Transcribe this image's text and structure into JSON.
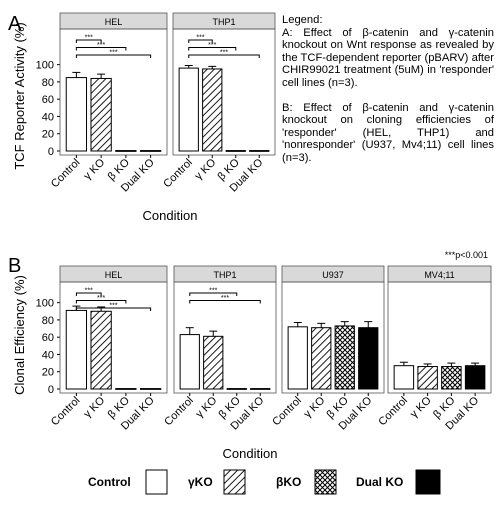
{
  "panel_a_letter": "A",
  "panel_b_letter": "B",
  "legend": {
    "title": "Legend:",
    "text_a": "A: Effect of β-catenin and γ-catenin knockout on Wnt response as revealed by the TCF-dependent reporter (pBARV) after CHIR99021 treatment (5uM) in 'responder' cell lines (n=3).",
    "text_b": "B: Effect of β-catenin and γ-catenin knockout on cloning efficiencies of 'responder' (HEL, THP1) and 'nonresponder' (U937, Mv4;11) cell lines (n=3)."
  },
  "significance_note": "***p<0.001",
  "fill_legend": [
    {
      "label": "Control",
      "fill": "white"
    },
    {
      "label": "γKO",
      "fill": "hatch"
    },
    {
      "label": "βKO",
      "fill": "cross"
    },
    {
      "label": "Dual KO",
      "fill": "black"
    }
  ],
  "chart_data": [
    {
      "type": "bar",
      "panel": "A",
      "ylabel": "TCF Reporter Activity (%)",
      "xlabel": "Condition",
      "ylim": [
        0,
        110
      ],
      "yticks": [
        "0",
        "20",
        "40",
        "60",
        "80",
        "100"
      ],
      "categories": [
        "Control",
        "γ KO",
        "β KO",
        "Dual KO"
      ],
      "facets": [
        {
          "name": "HEL",
          "values": [
            85,
            84,
            0.5,
            0.5
          ],
          "errors": [
            6,
            5,
            0,
            0
          ],
          "brackets": [
            {
              "to": 1,
              "label": "***"
            },
            {
              "to": 2,
              "label": "***"
            },
            {
              "to": 3,
              "label": "***"
            }
          ]
        },
        {
          "name": "THP1",
          "values": [
            96,
            95,
            0.5,
            0.5
          ],
          "errors": [
            3,
            3,
            0,
            0
          ],
          "brackets": [
            {
              "to": 1,
              "label": "***"
            },
            {
              "to": 2,
              "label": "***"
            },
            {
              "to": 3,
              "label": "***"
            }
          ]
        }
      ]
    },
    {
      "type": "bar",
      "panel": "B",
      "ylabel": "Clonal Efficiency (%)",
      "xlabel": "Condition",
      "ylim": [
        0,
        110
      ],
      "yticks": [
        "0",
        "20",
        "40",
        "60",
        "80",
        "100"
      ],
      "categories": [
        "Control",
        "γ KO",
        "β KO",
        "Dual KO"
      ],
      "facets": [
        {
          "name": "HEL",
          "values": [
            91,
            90,
            0.5,
            0.5
          ],
          "errors": [
            5,
            5,
            0,
            0
          ],
          "brackets": [
            {
              "to": 1,
              "label": "***"
            },
            {
              "to": 2,
              "label": "***"
            },
            {
              "to": 3,
              "label": "***"
            }
          ]
        },
        {
          "name": "THP1",
          "values": [
            63,
            61,
            0.5,
            0.5
          ],
          "errors": [
            8,
            6,
            0,
            0
          ],
          "brackets": [
            {
              "to": 2,
              "label": "***"
            },
            {
              "to": 3,
              "label": "***"
            }
          ]
        },
        {
          "name": "U937",
          "values": [
            72,
            71,
            73,
            71
          ],
          "errors": [
            5,
            5,
            5,
            7
          ],
          "brackets": []
        },
        {
          "name": "MV4;11",
          "values": [
            27,
            26,
            26,
            27
          ],
          "errors": [
            4,
            3,
            4,
            3
          ],
          "brackets": []
        }
      ]
    }
  ]
}
